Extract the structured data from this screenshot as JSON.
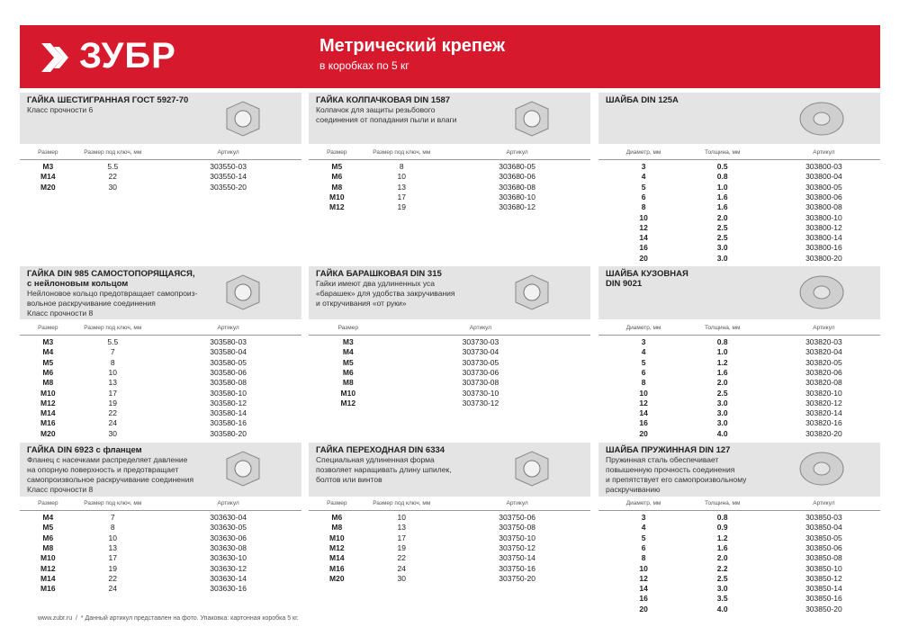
{
  "header": {
    "logo": "ЗУБР",
    "title": "Метрический крепеж",
    "subtitle": "в коробках по 5 кг"
  },
  "panels": [
    {
      "title": [
        "ГАЙКА ШЕСТИГРАННАЯ ГОСТ 5927-70"
      ],
      "description": [
        "Класс прочности 6"
      ],
      "columns": [
        "Размер",
        "Размер под ключ, мм",
        "Артикул"
      ],
      "rows": [
        [
          "M3",
          "5.5",
          "303550-03"
        ],
        [
          "M14",
          "22",
          "303550-14"
        ],
        [
          "M20",
          "30",
          "303550-20"
        ]
      ]
    },
    {
      "title": [
        "ГАЙКА КОЛПАЧКОВАЯ DIN 1587"
      ],
      "description": [
        "Колпачок для защиты резьбового",
        "соединения от попадания пыли и влаги"
      ],
      "columns": [
        "Размер",
        "Размер под ключ, мм",
        "Артикул"
      ],
      "rows": [
        [
          "M5",
          "8",
          "303680-05"
        ],
        [
          "M6",
          "10",
          "303680-06"
        ],
        [
          "M8",
          "13",
          "303680-08"
        ],
        [
          "M10",
          "17",
          "303680-10"
        ],
        [
          "M12",
          "19",
          "303680-12"
        ]
      ]
    },
    {
      "title": [
        "ШАЙБА DIN 125A"
      ],
      "description": [],
      "columns": [
        "Диаметр, мм",
        "Толщина, мм",
        "Артикул"
      ],
      "rows": [
        [
          "3",
          "0.5",
          "303800-03"
        ],
        [
          "4",
          "0.8",
          "303800-04"
        ],
        [
          "5",
          "1.0",
          "303800-05"
        ],
        [
          "6",
          "1.6",
          "303800-06"
        ],
        [
          "8",
          "1.6",
          "303800-08"
        ],
        [
          "10",
          "2.0",
          "303800-10"
        ],
        [
          "12",
          "2.5",
          "303800-12"
        ],
        [
          "14",
          "2.5",
          "303800-14"
        ],
        [
          "16",
          "3.0",
          "303800-16"
        ],
        [
          "20",
          "3.0",
          "303800-20"
        ]
      ]
    },
    {
      "title": [
        "ГАЙКА DIN 985 САМОСТОПОРЯЩАЯСЯ,",
        "с нейлоновым кольцом"
      ],
      "description": [
        "Нейлоновое кольцо предотвращает самопроиз-",
        "вольное раскручивание соединения",
        "Класс прочности 8"
      ],
      "columns": [
        "Размер",
        "Размер под ключ, мм",
        "Артикул"
      ],
      "rows": [
        [
          "M3",
          "5.5",
          "303580-03"
        ],
        [
          "M4",
          "7",
          "303580-04"
        ],
        [
          "M5",
          "8",
          "303580-05"
        ],
        [
          "M6",
          "10",
          "303580-06"
        ],
        [
          "M8",
          "13",
          "303580-08"
        ],
        [
          "M10",
          "17",
          "303580-10"
        ],
        [
          "M12",
          "19",
          "303580-12"
        ],
        [
          "M14",
          "22",
          "303580-14"
        ],
        [
          "M16",
          "24",
          "303580-16"
        ],
        [
          "M20",
          "30",
          "303580-20"
        ]
      ]
    },
    {
      "title": [
        "ГАЙКА БАРАШКОВАЯ DIN 315"
      ],
      "description": [
        "Гайки имеют два удлиненных уса",
        "«барашек» для удобства закручивания",
        "и откручивания «от руки»"
      ],
      "columns": [
        "Размер",
        "Артикул"
      ],
      "rows": [
        [
          "M3",
          "303730-03"
        ],
        [
          "M4",
          "303730-04"
        ],
        [
          "M5",
          "303730-05"
        ],
        [
          "M6",
          "303730-06"
        ],
        [
          "M8",
          "303730-08"
        ],
        [
          "M10",
          "303730-10"
        ],
        [
          "M12",
          "303730-12"
        ]
      ]
    },
    {
      "title": [
        "ШАЙБА КУЗОВНАЯ",
        "DIN 9021"
      ],
      "description": [],
      "columns": [
        "Диаметр, мм",
        "Толщина, мм",
        "Артикул"
      ],
      "rows": [
        [
          "3",
          "0.8",
          "303820-03"
        ],
        [
          "4",
          "1.0",
          "303820-04"
        ],
        [
          "5",
          "1.2",
          "303820-05"
        ],
        [
          "6",
          "1.6",
          "303820-06"
        ],
        [
          "8",
          "2.0",
          "303820-08"
        ],
        [
          "10",
          "2.5",
          "303820-10"
        ],
        [
          "12",
          "3.0",
          "303820-12"
        ],
        [
          "14",
          "3.0",
          "303820-14"
        ],
        [
          "16",
          "3.0",
          "303820-16"
        ],
        [
          "20",
          "4.0",
          "303820-20"
        ]
      ]
    },
    {
      "title": [
        "ГАЙКА DIN 6923 с фланцем"
      ],
      "description": [
        "Фланец с насечками распределяет давление",
        "на опорную поверхность и предотвращает",
        "самопроизвольное раскручивание соединения",
        "Класс прочности 8"
      ],
      "columns": [
        "Размер",
        "Размер под ключ, мм",
        "Артикул"
      ],
      "rows": [
        [
          "M4",
          "7",
          "303630-04"
        ],
        [
          "M5",
          "8",
          "303630-05"
        ],
        [
          "M6",
          "10",
          "303630-06"
        ],
        [
          "M8",
          "13",
          "303630-08"
        ],
        [
          "M10",
          "17",
          "303630-10"
        ],
        [
          "M12",
          "19",
          "303630-12"
        ],
        [
          "M14",
          "22",
          "303630-14"
        ],
        [
          "M16",
          "24",
          "303630-16"
        ]
      ]
    },
    {
      "title": [
        "ГАЙКА ПЕРЕХОДНАЯ DIN 6334"
      ],
      "description": [
        "Специальная удлиненная форма",
        "позволяет наращивать длину шпилек,",
        "болтов или винтов"
      ],
      "columns": [
        "Размер",
        "Размер под ключ, мм",
        "Артикул"
      ],
      "rows": [
        [
          "M6",
          "10",
          "303750-06"
        ],
        [
          "M8",
          "13",
          "303750-08"
        ],
        [
          "M10",
          "17",
          "303750-10"
        ],
        [
          "M12",
          "19",
          "303750-12"
        ],
        [
          "M14",
          "22",
          "303750-14"
        ],
        [
          "M16",
          "24",
          "303750-16"
        ],
        [
          "M20",
          "30",
          "303750-20"
        ]
      ]
    },
    {
      "title": [
        "ШАЙБА ПРУЖИННАЯ DIN 127"
      ],
      "description": [
        "Пружинная сталь обеспечивает",
        "повышенную прочность соединения",
        "и препятствует его самопроизвольному",
        "раскручиванию"
      ],
      "columns": [
        "Диаметр, мм",
        "Толщина, мм",
        "Артикул"
      ],
      "rows": [
        [
          "3",
          "0.8",
          "303850-03"
        ],
        [
          "4",
          "0.9",
          "303850-04"
        ],
        [
          "5",
          "1.2",
          "303850-05"
        ],
        [
          "6",
          "1.6",
          "303850-06"
        ],
        [
          "8",
          "2.0",
          "303850-08"
        ],
        [
          "10",
          "2.2",
          "303850-10"
        ],
        [
          "12",
          "2.5",
          "303850-12"
        ],
        [
          "14",
          "3.0",
          "303850-14"
        ],
        [
          "16",
          "3.5",
          "303850-16"
        ],
        [
          "20",
          "4.0",
          "303850-20"
        ]
      ]
    }
  ],
  "footer": [
    "www.zubr.ru",
    "/",
    "* Данный артикул представлен на фото. Упаковка: картонная коробка 5 кг."
  ]
}
